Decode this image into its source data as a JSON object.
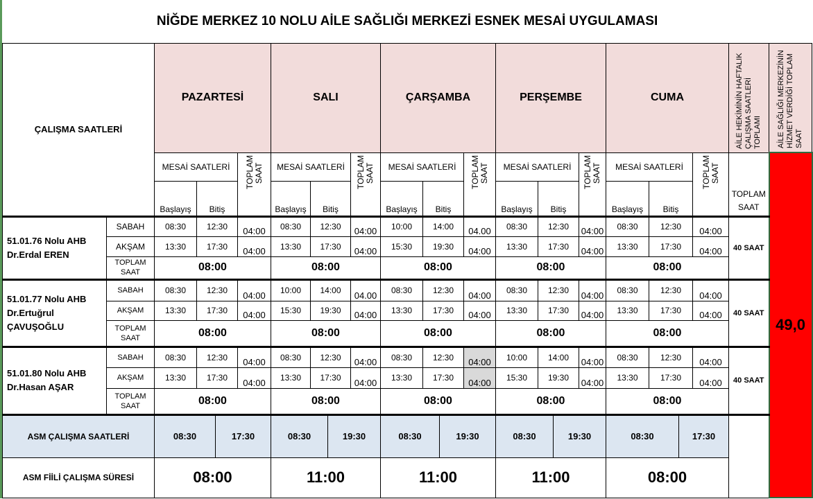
{
  "title": "NİĞDE MERKEZ 10 NOLU AİLE SAĞLIĞI MERKEZİ ESNEK MESAİ UYGULAMASI",
  "header": {
    "calisma_saatleri": "ÇALIŞMA SAATLERİ",
    "days": [
      "PAZARTESİ",
      "SALI",
      "ÇARŞAMBA",
      "PERŞEMBE",
      "CUMA"
    ],
    "mesai_saatleri": "MESAİ SAATLERİ",
    "toplam_saat_vertical": "TOPLAM SAAT",
    "baslayis": "Başlayış",
    "bitis": "Bitiş",
    "weekly_total_header": "AİLE HEKİMİNİN HAFTALIK ÇALIŞMA SAATLERİ TOPLAMI",
    "asm_total_header": "AİLE SAĞLIĞI MERKEZİNİN HİZMET VERDİĞİ TOPLAM SAAT",
    "toplam_saat": "TOPLAM SAAT"
  },
  "shift_labels": {
    "sabah": "SABAH",
    "aksam": "AKŞAM",
    "toplam": "TOPLAM SAAT"
  },
  "doctors": [
    {
      "unit": "51.01.76 Nolu AHB",
      "name": "Dr.Erdal EREN",
      "weekly_total": "40 SAAT",
      "sabah": [
        [
          "08:30",
          "12:30",
          "04:00"
        ],
        [
          "08:30",
          "12:30",
          "04:00"
        ],
        [
          "10:00",
          "14:00",
          "04.00"
        ],
        [
          "08:30",
          "12:30",
          "04:00"
        ],
        [
          "08:30",
          "12:30",
          "04:00"
        ]
      ],
      "aksam": [
        [
          "13:30",
          "17:30",
          "04:00"
        ],
        [
          "13:30",
          "17:30",
          "04:00"
        ],
        [
          "15:30",
          "19:30",
          "04:00"
        ],
        [
          "13:30",
          "17:30",
          "04:00"
        ],
        [
          "13:30",
          "17:30",
          "04:00"
        ]
      ],
      "day_totals": [
        "08:00",
        "08:00",
        "08:00",
        "08:00",
        "08:00"
      ]
    },
    {
      "unit": "51.01.77 Nolu AHB",
      "name": "Dr.Ertuğrul ÇAVUŞOĞLU",
      "weekly_total": "40 SAAT",
      "sabah": [
        [
          "08:30",
          "12:30",
          "04:00"
        ],
        [
          "10:00",
          "14:00",
          "04.00"
        ],
        [
          "08:30",
          "12:30",
          "04:00"
        ],
        [
          "08:30",
          "12:30",
          "04:00"
        ],
        [
          "08:30",
          "12:30",
          "04:00"
        ]
      ],
      "aksam": [
        [
          "13:30",
          "17:30",
          "04:00"
        ],
        [
          "15:30",
          "19:30",
          "04:00"
        ],
        [
          "13:30",
          "17:30",
          "04:00"
        ],
        [
          "13:30",
          "17:30",
          "04:00"
        ],
        [
          "13:30",
          "17:30",
          "04:00"
        ]
      ],
      "day_totals": [
        "08:00",
        "08:00",
        "08:00",
        "08:00",
        "08:00"
      ]
    },
    {
      "unit": "51.01.80 Nolu AHB",
      "name": "Dr.Hasan AŞAR",
      "weekly_total": "40 SAAT",
      "sabah": [
        [
          "08:30",
          "12:30",
          "04:00"
        ],
        [
          "08:30",
          "12:30",
          "04:00"
        ],
        [
          "08:30",
          "12:30",
          "04:00"
        ],
        [
          "10:00",
          "14:00",
          "04:00"
        ],
        [
          "08:30",
          "12:30",
          "04:00"
        ]
      ],
      "aksam": [
        [
          "13:30",
          "17:30",
          "04:00"
        ],
        [
          "13:30",
          "17:30",
          "04:00"
        ],
        [
          "13:30",
          "17:30",
          "04:00"
        ],
        [
          "15:30",
          "19:30",
          "04:00"
        ],
        [
          "13:30",
          "17:30",
          "04:00"
        ]
      ],
      "day_totals": [
        "08:00",
        "08:00",
        "08:00",
        "08:00",
        "08:00"
      ]
    }
  ],
  "asm": {
    "hours_label": "ASM ÇALIŞMA SAATLERİ",
    "hours": [
      [
        "08:30",
        "17:30"
      ],
      [
        "08:30",
        "19:30"
      ],
      [
        "08:30",
        "19:30"
      ],
      [
        "08:30",
        "19:30"
      ],
      [
        "08:30",
        "17:30"
      ]
    ],
    "actual_label": "ASM FİİLİ ÇALIŞMA SÜRESİ",
    "actual": [
      "08:00",
      "11:00",
      "11:00",
      "11:00",
      "08:00"
    ],
    "total_hours": "49,0"
  },
  "colors": {
    "header_pink": "#f2dcdb",
    "asm_blue": "#dce6f1",
    "total_red": "#ff0000",
    "highlight_gray": "#d9d9d9"
  }
}
